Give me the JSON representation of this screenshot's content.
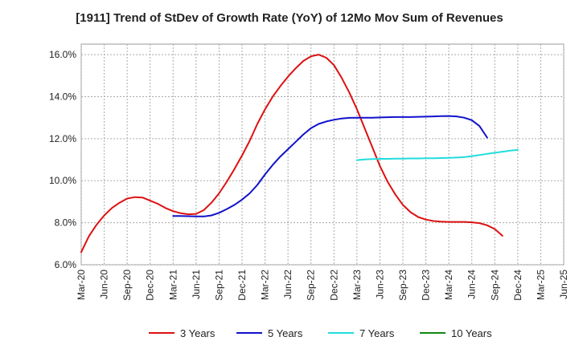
{
  "chart_data": {
    "type": "line",
    "title": "[1911]  Trend of StDev of Growth Rate (YoY) of 12Mo Mov Sum of Revenues",
    "xlabel": "",
    "ylabel": "",
    "ylim": [
      6.0,
      16.5
    ],
    "y_ticks": [
      "6.0%",
      "8.0%",
      "10.0%",
      "12.0%",
      "14.0%",
      "16.0%"
    ],
    "y_tick_values": [
      6,
      8,
      10,
      12,
      14,
      16
    ],
    "x_ticks": [
      "Mar-20",
      "Jun-20",
      "Sep-20",
      "Dec-20",
      "Mar-21",
      "Jun-21",
      "Sep-21",
      "Dec-21",
      "Mar-22",
      "Jun-22",
      "Sep-22",
      "Dec-22",
      "Mar-23",
      "Jun-23",
      "Sep-23",
      "Dec-23",
      "Mar-24",
      "Jun-24",
      "Sep-24",
      "Dec-24",
      "Mar-25",
      "Jun-25"
    ],
    "grid": true,
    "legend_position": "bottom",
    "series": [
      {
        "name": "3 Years",
        "color": "#dd1111",
        "start_index": 0,
        "values": [
          6.6,
          7.35,
          7.9,
          8.35,
          8.7,
          8.95,
          9.15,
          9.22,
          9.2,
          9.05,
          8.9,
          8.7,
          8.55,
          8.45,
          8.4,
          8.42,
          8.6,
          8.95,
          9.4,
          9.95,
          10.55,
          11.2,
          11.9,
          12.7,
          13.4,
          14.0,
          14.5,
          14.95,
          15.35,
          15.7,
          15.92,
          16.0,
          15.85,
          15.5,
          14.9,
          14.2,
          13.4,
          12.5,
          11.6,
          10.7,
          9.95,
          9.35,
          8.85,
          8.5,
          8.27,
          8.15,
          8.08,
          8.05,
          8.04,
          8.04,
          8.04,
          8.02,
          7.98,
          7.88,
          7.7,
          7.38
        ]
      },
      {
        "name": "5 Years",
        "color": "#1111cc",
        "start_index": 12,
        "values": [
          8.32,
          8.32,
          8.31,
          8.3,
          8.3,
          8.35,
          8.47,
          8.65,
          8.85,
          9.1,
          9.4,
          9.8,
          10.3,
          10.75,
          11.15,
          11.5,
          11.85,
          12.2,
          12.5,
          12.7,
          12.82,
          12.9,
          12.96,
          12.99,
          13.0,
          13.0,
          13.0,
          13.01,
          13.02,
          13.03,
          13.03,
          13.03,
          13.04,
          13.05,
          13.06,
          13.07,
          13.08,
          13.06,
          13.0,
          12.88,
          12.6,
          12.05
        ]
      },
      {
        "name": "7 Years",
        "color": "#22dddd",
        "start_index": 36,
        "values": [
          10.98,
          11.01,
          11.03,
          11.04,
          11.04,
          11.05,
          11.05,
          11.06,
          11.06,
          11.07,
          11.07,
          11.08,
          11.09,
          11.1,
          11.12,
          11.17,
          11.22,
          11.28,
          11.33,
          11.38,
          11.43,
          11.47
        ]
      },
      {
        "name": "10 Years",
        "color": "#118811",
        "start_index": 0,
        "values": []
      }
    ]
  }
}
